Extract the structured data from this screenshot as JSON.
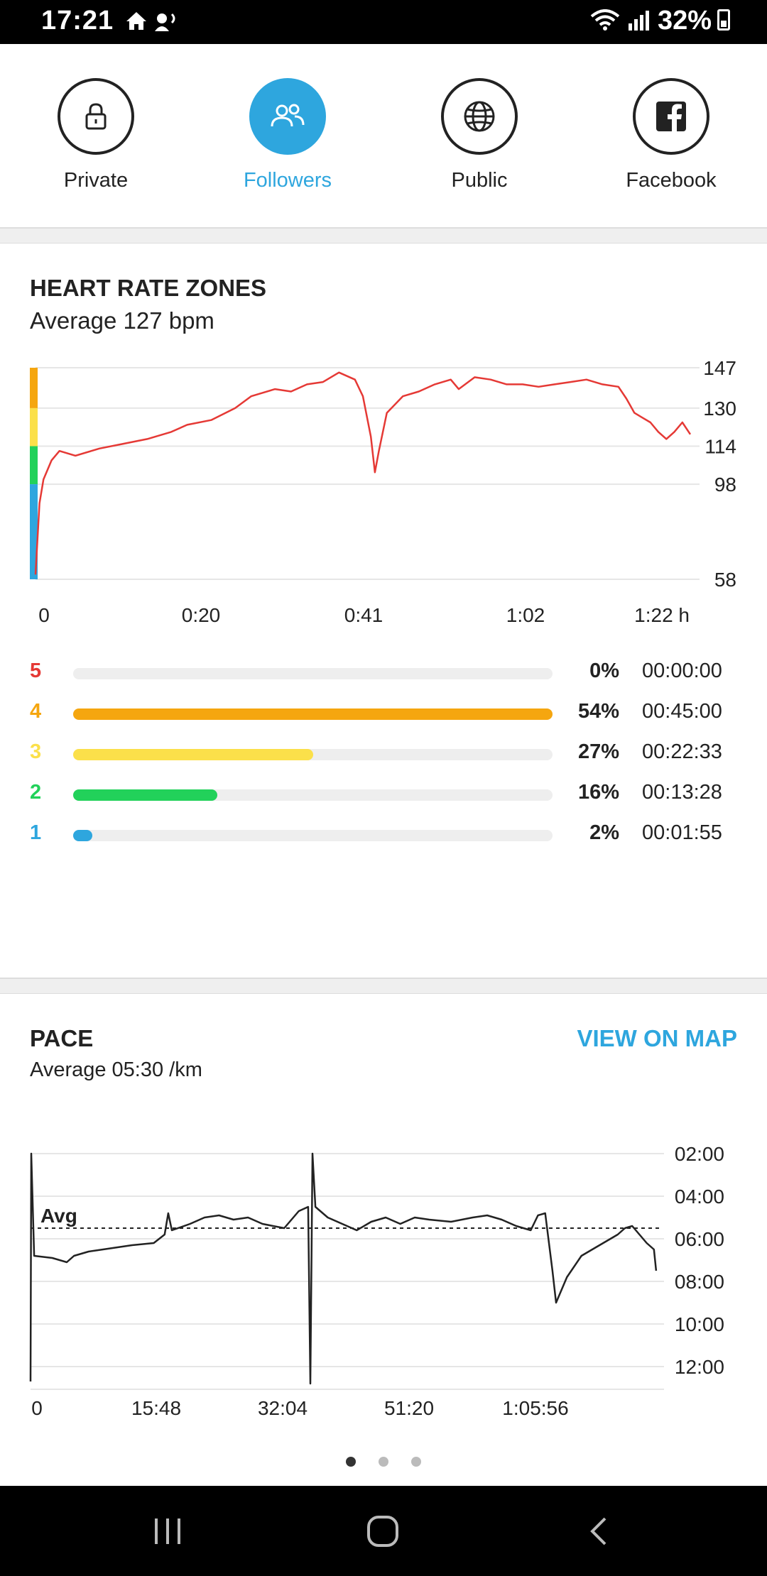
{
  "status_bar": {
    "time": "17:21",
    "battery": "32%"
  },
  "share_options": [
    {
      "label": "Private",
      "icon": "lock-icon",
      "active": false
    },
    {
      "label": "Followers",
      "icon": "followers-icon",
      "active": true
    },
    {
      "label": "Public",
      "icon": "globe-icon",
      "active": false
    },
    {
      "label": "Facebook",
      "icon": "facebook-icon",
      "active": false
    }
  ],
  "heart_rate": {
    "title": "HEART RATE ZONES",
    "average": "Average 127 bpm",
    "zones": [
      {
        "zone": "5",
        "color": "#e53935",
        "percent": "0%",
        "fraction": 0.0,
        "duration": "00:00:00"
      },
      {
        "zone": "4",
        "color": "#f5a60f",
        "percent": "54%",
        "fraction": 1.0,
        "duration": "00:45:00"
      },
      {
        "zone": "3",
        "color": "#fbe04a",
        "percent": "27%",
        "fraction": 0.5,
        "duration": "00:22:33"
      },
      {
        "zone": "2",
        "color": "#22d15a",
        "percent": "16%",
        "fraction": 0.3,
        "duration": "00:13:28"
      },
      {
        "zone": "1",
        "color": "#2ea6de",
        "percent": "2%",
        "fraction": 0.04,
        "duration": "00:01:55"
      }
    ]
  },
  "pace": {
    "title": "PACE",
    "average": "Average 05:30 /km",
    "view_on_map": "VIEW ON MAP",
    "avg_label": "Avg"
  },
  "chart_data": [
    {
      "type": "line",
      "title": "HEART RATE ZONES",
      "ylabel": "",
      "xlabel": "",
      "y_ticks": [
        "147",
        "130",
        "114",
        "98",
        "58"
      ],
      "x_ticks": [
        "0",
        "0:20",
        "0:41",
        "1:02",
        "1:22 h"
      ],
      "ylim": [
        58,
        147
      ],
      "xlim": [
        0,
        82
      ],
      "series": [
        {
          "color": "#e53935",
          "points": [
            [
              0,
              60
            ],
            [
              0.5,
              90
            ],
            [
              1,
              100
            ],
            [
              2,
              108
            ],
            [
              3,
              112
            ],
            [
              5,
              110
            ],
            [
              8,
              113
            ],
            [
              11,
              115
            ],
            [
              14,
              117
            ],
            [
              17,
              120
            ],
            [
              19,
              123
            ],
            [
              22,
              125
            ],
            [
              25,
              130
            ],
            [
              27,
              135
            ],
            [
              30,
              138
            ],
            [
              32,
              137
            ],
            [
              34,
              140
            ],
            [
              36,
              141
            ],
            [
              38,
              145
            ],
            [
              40,
              142
            ],
            [
              41,
              135
            ],
            [
              42,
              118
            ],
            [
              42.5,
              103
            ],
            [
              43,
              112
            ],
            [
              44,
              128
            ],
            [
              46,
              135
            ],
            [
              48,
              137
            ],
            [
              50,
              140
            ],
            [
              52,
              142
            ],
            [
              53,
              138
            ],
            [
              55,
              143
            ],
            [
              57,
              142
            ],
            [
              59,
              140
            ],
            [
              61,
              140
            ],
            [
              63,
              139
            ],
            [
              65,
              140
            ],
            [
              67,
              141
            ],
            [
              69,
              142
            ],
            [
              71,
              140
            ],
            [
              73,
              139
            ],
            [
              74,
              134
            ],
            [
              75,
              128
            ],
            [
              76,
              126
            ],
            [
              77,
              124
            ],
            [
              78,
              120
            ],
            [
              79,
              117
            ],
            [
              80,
              120
            ],
            [
              81,
              124
            ],
            [
              82,
              119
            ]
          ]
        }
      ]
    },
    {
      "type": "line",
      "title": "PACE",
      "ylabel": "",
      "xlabel": "",
      "y_ticks": [
        "02:00",
        "04:00",
        "06:00",
        "08:00",
        "10:00",
        "12:00"
      ],
      "x_ticks": [
        "0",
        "15:48",
        "32:04",
        "51:20",
        "1:05:56"
      ],
      "ylim": [
        1,
        13
      ],
      "average_pace": 5.5,
      "series": [
        {
          "color": "#222222",
          "points": [
            [
              0,
              12.7
            ],
            [
              0.1,
              2
            ],
            [
              0.5,
              6.8
            ],
            [
              3,
              6.9
            ],
            [
              5,
              7.1
            ],
            [
              6,
              6.8
            ],
            [
              8,
              6.6
            ],
            [
              10,
              6.5
            ],
            [
              12,
              6.4
            ],
            [
              14,
              6.3
            ],
            [
              17,
              6.2
            ],
            [
              18.5,
              5.8
            ],
            [
              19,
              4.8
            ],
            [
              19.5,
              5.6
            ],
            [
              22,
              5.3
            ],
            [
              24,
              5.0
            ],
            [
              26,
              4.9
            ],
            [
              28,
              5.1
            ],
            [
              30,
              5.0
            ],
            [
              32,
              5.3
            ],
            [
              35,
              5.5
            ],
            [
              37,
              4.7
            ],
            [
              38.3,
              4.5
            ],
            [
              38.6,
              12.8
            ],
            [
              38.9,
              2
            ],
            [
              39.3,
              4.5
            ],
            [
              41,
              5.0
            ],
            [
              43,
              5.3
            ],
            [
              45,
              5.6
            ],
            [
              47,
              5.2
            ],
            [
              49,
              5.0
            ],
            [
              51,
              5.3
            ],
            [
              53,
              5.0
            ],
            [
              55,
              5.1
            ],
            [
              58,
              5.2
            ],
            [
              61,
              5.0
            ],
            [
              63,
              4.9
            ],
            [
              65,
              5.1
            ],
            [
              67,
              5.4
            ],
            [
              69,
              5.6
            ],
            [
              70,
              4.9
            ],
            [
              71,
              4.8
            ],
            [
              72,
              7.5
            ],
            [
              72.5,
              9.0
            ],
            [
              74,
              7.8
            ],
            [
              76,
              6.8
            ],
            [
              78,
              6.4
            ],
            [
              80,
              6.0
            ],
            [
              81,
              5.8
            ],
            [
              82,
              5.5
            ],
            [
              83,
              5.4
            ],
            [
              84,
              5.8
            ],
            [
              85,
              6.2
            ],
            [
              86,
              6.5
            ],
            [
              86.3,
              7.5
            ]
          ]
        }
      ]
    }
  ],
  "page_indicator": {
    "count": 3,
    "active": 0
  }
}
